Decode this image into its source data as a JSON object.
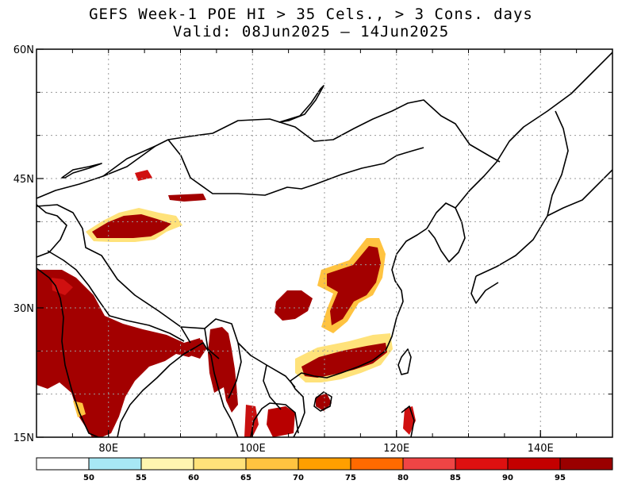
{
  "title": {
    "line1": "GEFS Week-1 POE HI > 35 Cels., > 3 Cons. days",
    "line2": "Valid: 08Jun2025 – 14Jun2025"
  },
  "map": {
    "lon_range": [
      70,
      150
    ],
    "lat_range": [
      15,
      60
    ],
    "x_ticks": [
      {
        "lon": 80,
        "label": "80E"
      },
      {
        "lon": 100,
        "label": "100E"
      },
      {
        "lon": 120,
        "label": "120E"
      },
      {
        "lon": 140,
        "label": "140E"
      }
    ],
    "y_ticks": [
      {
        "lat": 15,
        "label": "15N"
      },
      {
        "lat": 30,
        "label": "30N"
      },
      {
        "lat": 45,
        "label": "45N"
      },
      {
        "lat": 60,
        "label": "60N"
      }
    ],
    "gridlines": true
  },
  "colorbar": {
    "labels": [
      "50",
      "55",
      "60",
      "65",
      "70",
      "75",
      "80",
      "85",
      "90",
      "95"
    ],
    "colors": [
      "#ffffff",
      "#a7e8f5",
      "#fff5b0",
      "#ffe27a",
      "#ffc340",
      "#ff9f00",
      "#ff6a00",
      "#ef4545",
      "#de1010",
      "#c40000",
      "#9a0000"
    ]
  }
}
